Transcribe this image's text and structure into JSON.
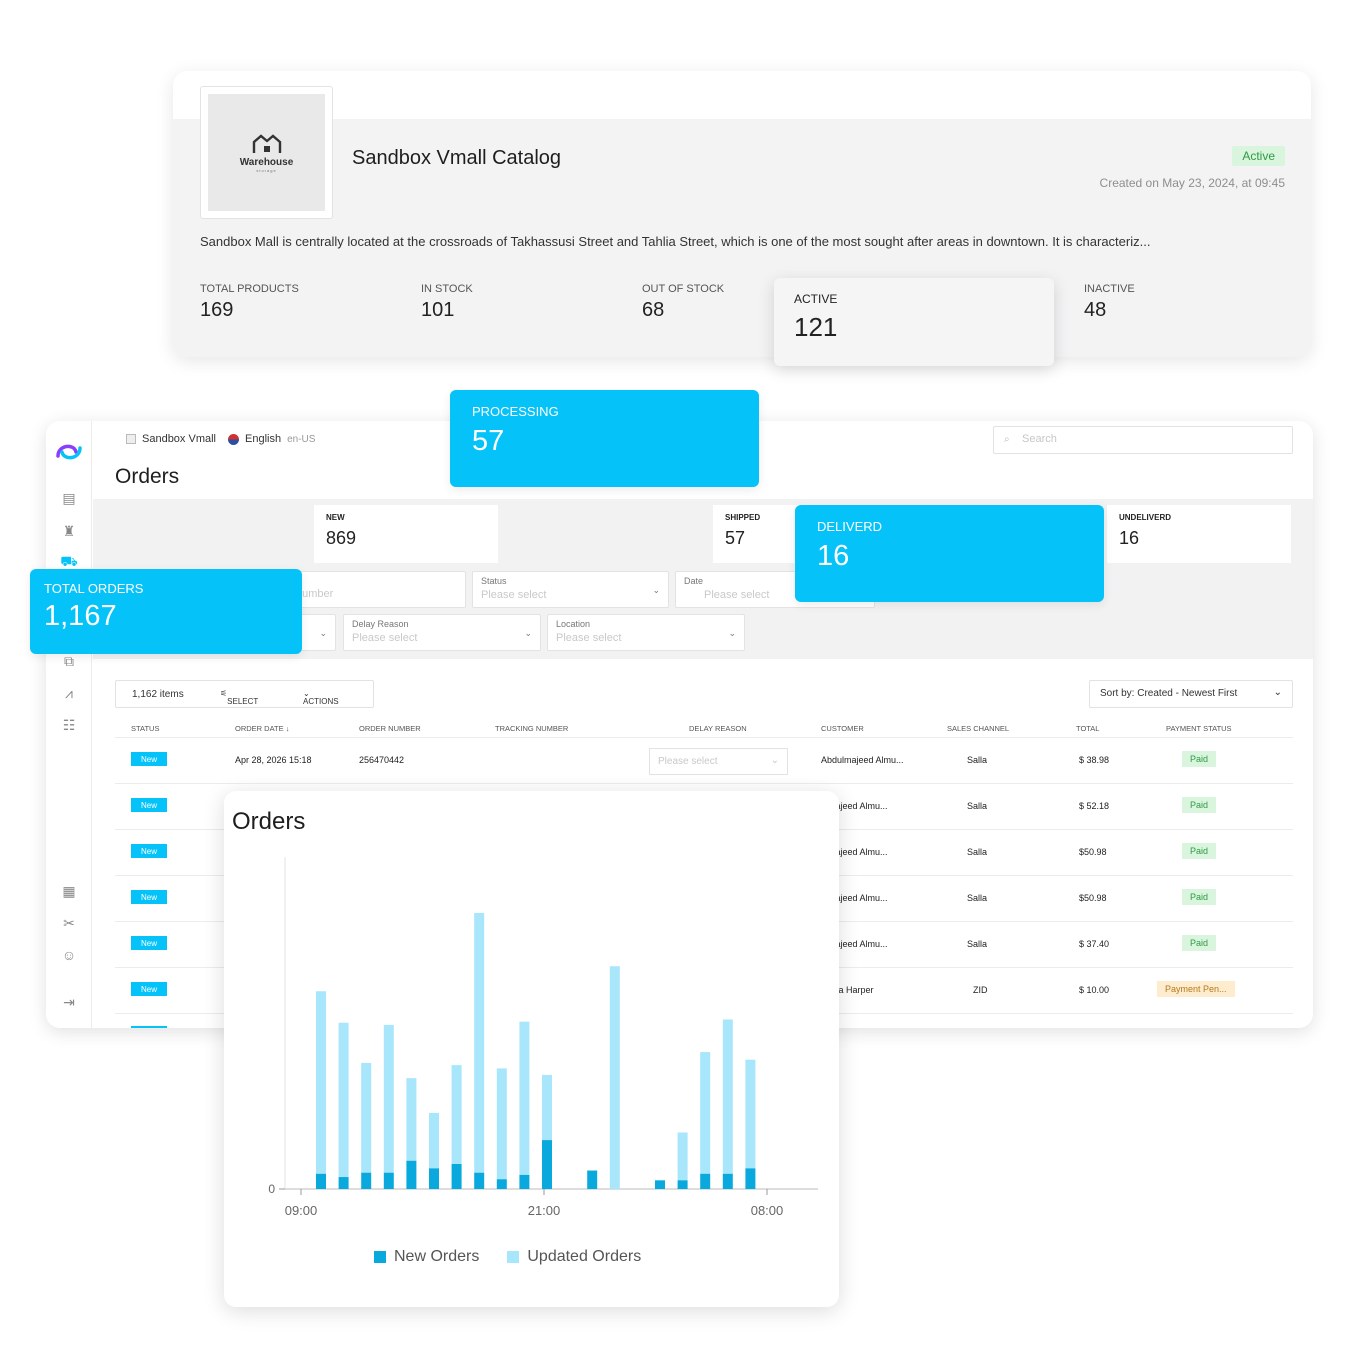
{
  "catalog": {
    "logo_text": "Warehouse",
    "logo_sub": "storage",
    "title": "Sandbox Vmall Catalog",
    "status": "Active",
    "created": "Created on May 23, 2024, at 09:45",
    "description": "Sandbox Mall is centrally located at the crossroads of Takhassusi Street and Tahlia Street, which is one of the most sought after areas in downtown. It is characteriz...",
    "stats": [
      {
        "label": "TOTAL PRODUCTS",
        "value": "169"
      },
      {
        "label": "IN STOCK",
        "value": "101"
      },
      {
        "label": "OUT OF STOCK",
        "value": "68"
      },
      {
        "label": "ACTIVE",
        "value": "121"
      },
      {
        "label": "INACTIVE",
        "value": "48"
      }
    ]
  },
  "app": {
    "store": "Sandbox Vmall",
    "language": "English",
    "locale": "en-US",
    "search_placeholder": "Search",
    "page_title": "Orders",
    "kpis": [
      {
        "label": "NEW",
        "value": "869"
      },
      {
        "label": "SHIPPED",
        "value": "57"
      },
      {
        "label": "UNDELIVERD",
        "value": "16"
      }
    ],
    "filters": {
      "tracking_placeholder": "g Number",
      "status_label": "Status",
      "status_placeholder": "Please select",
      "date_label": "Date",
      "date_placeholder": "Please select",
      "delay_label": "Delay Reason",
      "delay_placeholder": "Please select",
      "location_label": "Location",
      "location_placeholder": "Please select"
    },
    "toolbar": {
      "items": "1,162 items",
      "select": "SELECT",
      "actions": "ACTIONS"
    },
    "sort": "Sort by: Created - Newest First",
    "columns": [
      "STATUS",
      "ORDER DATE ↓",
      "ORDER NUMBER",
      "TRACKING NUMBER",
      "DELAY REASON",
      "CUSTOMER",
      "SALES CHANNEL",
      "TOTAL",
      "PAYMENT STATUS"
    ],
    "rows": [
      {
        "status": "New",
        "date": "Apr 28, 2026 15:18",
        "number": "256470442",
        "delay": "Please select",
        "customer": "Abdulmajeed Almu...",
        "channel": "Salla",
        "total": "$ 38.98",
        "payment": "Paid"
      },
      {
        "status": "New",
        "customer": "ulmajeed Almu...",
        "channel": "Salla",
        "total": "$ 52.18",
        "payment": "Paid"
      },
      {
        "status": "New",
        "customer": "ulmajeed Almu...",
        "channel": "Salla",
        "total": "$50.98",
        "payment": "Paid"
      },
      {
        "status": "New",
        "customer": "ulmajeed Almu...",
        "channel": "Salla",
        "total": "$50.98",
        "payment": "Paid"
      },
      {
        "status": "New",
        "customer": "ulmajeed Almu...",
        "channel": "Salla",
        "total": "$ 37.40",
        "payment": "Paid"
      },
      {
        "status": "New",
        "customer": "nanta Harper",
        "channel": "ZID",
        "total": "$ 10.00",
        "payment": "Payment Pen..."
      }
    ]
  },
  "cards": {
    "processing": {
      "label": "PROCESSING",
      "value": "57"
    },
    "delivered": {
      "label": "DELIVERD",
      "value": "16"
    },
    "total_orders": {
      "label": "TOTAL ORDERS",
      "value": "1,167"
    }
  },
  "colors": {
    "accent": "#05c3f9",
    "new_orders": "#0aa9dd",
    "updated_orders": "#a8e6fb",
    "paid_bg": "#d9f5dd"
  },
  "chart_data": {
    "type": "bar",
    "title": "Orders",
    "x_tick_labels": [
      "09:00",
      "21:00",
      "08:00"
    ],
    "y_tick_labels": [
      "0"
    ],
    "series": [
      {
        "name": "New Orders",
        "values": [
          14,
          11,
          15,
          15,
          26,
          19,
          23,
          15,
          9,
          13,
          45,
          0,
          17,
          0,
          0,
          8,
          8,
          14,
          14,
          19
        ]
      },
      {
        "name": "Updated Orders",
        "values": [
          168,
          142,
          101,
          136,
          76,
          51,
          91,
          239,
          102,
          141,
          60,
          0,
          0,
          205,
          0,
          0,
          44,
          112,
          142,
          100
        ]
      }
    ],
    "stacked": true,
    "grid": false,
    "legend_position": "bottom"
  }
}
